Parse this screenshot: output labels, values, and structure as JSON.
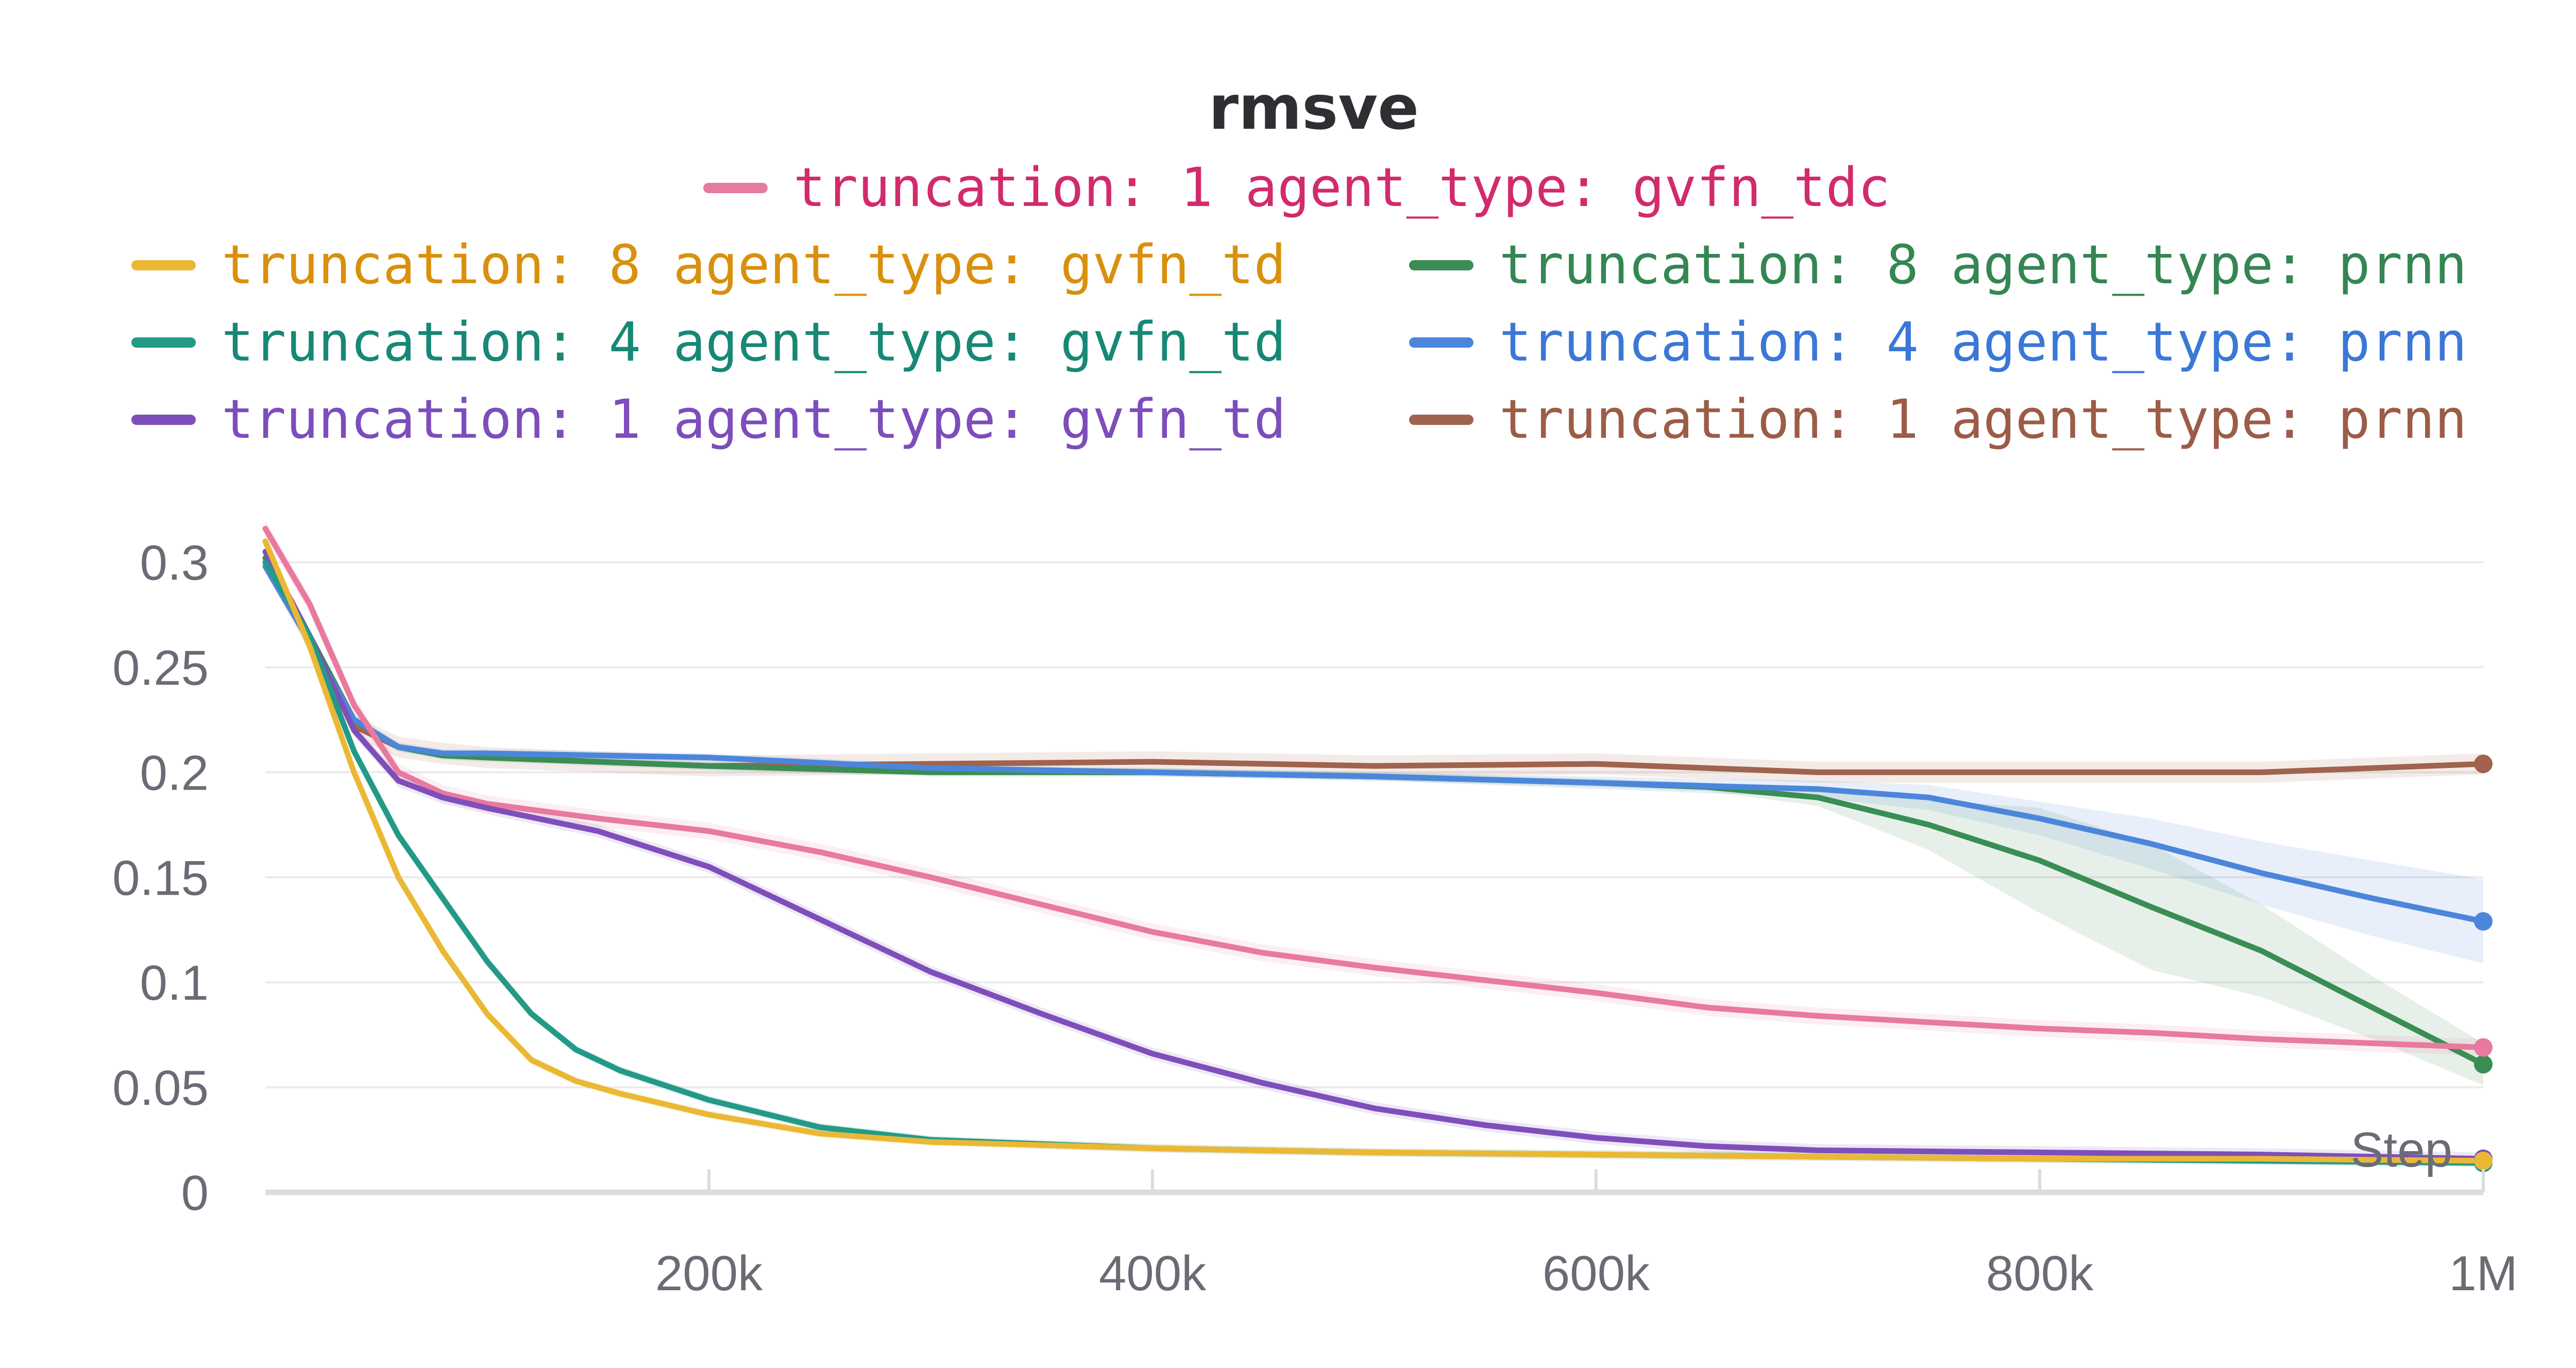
{
  "chart_data": {
    "type": "line",
    "title": "rmsve",
    "xlabel": "Step",
    "ylabel": "",
    "xlim": [
      0,
      1000000
    ],
    "ylim": [
      0,
      0.32
    ],
    "x_ticks": [
      200000,
      400000,
      600000,
      800000,
      1000000
    ],
    "x_tick_labels": [
      "200k",
      "400k",
      "600k",
      "800k",
      "1M"
    ],
    "y_ticks": [
      0,
      0.05,
      0.1,
      0.15,
      0.2,
      0.25,
      0.3
    ],
    "y_tick_labels": [
      "0",
      "0.05",
      "0.1",
      "0.15",
      "0.2",
      "0.25",
      "0.3"
    ],
    "grid": true,
    "legend_position": "top",
    "series": [
      {
        "name": "truncation: 1 agent_type: gvfn_tdc",
        "color": "#e8799f",
        "text_color": "#d12b6c",
        "band": 0.004,
        "x": [
          0,
          20000,
          40000,
          60000,
          80000,
          100000,
          150000,
          200000,
          250000,
          300000,
          350000,
          400000,
          450000,
          500000,
          550000,
          600000,
          650000,
          700000,
          750000,
          800000,
          850000,
          900000,
          950000,
          1000000
        ],
        "y": [
          0.316,
          0.28,
          0.232,
          0.2,
          0.19,
          0.185,
          0.178,
          0.172,
          0.162,
          0.15,
          0.137,
          0.124,
          0.114,
          0.107,
          0.101,
          0.095,
          0.088,
          0.084,
          0.081,
          0.078,
          0.076,
          0.073,
          0.071,
          0.069
        ]
      },
      {
        "name": "truncation: 8 agent_type: gvfn_td",
        "color": "#eab834",
        "text_color": "#d9900c",
        "band": 0.002,
        "x": [
          0,
          20000,
          40000,
          60000,
          80000,
          100000,
          120000,
          140000,
          160000,
          200000,
          250000,
          300000,
          400000,
          500000,
          600000,
          700000,
          800000,
          900000,
          1000000
        ],
        "y": [
          0.31,
          0.26,
          0.2,
          0.15,
          0.115,
          0.085,
          0.063,
          0.053,
          0.047,
          0.037,
          0.028,
          0.024,
          0.021,
          0.019,
          0.018,
          0.017,
          0.016,
          0.016,
          0.015
        ]
      },
      {
        "name": "truncation: 4 agent_type: gvfn_td",
        "color": "#239a87",
        "text_color": "#178875",
        "band": 0.002,
        "x": [
          0,
          20000,
          40000,
          60000,
          80000,
          100000,
          120000,
          140000,
          160000,
          200000,
          250000,
          300000,
          400000,
          500000,
          600000,
          700000,
          800000,
          900000,
          1000000
        ],
        "y": [
          0.3,
          0.265,
          0.21,
          0.17,
          0.14,
          0.11,
          0.085,
          0.068,
          0.058,
          0.044,
          0.031,
          0.025,
          0.021,
          0.019,
          0.018,
          0.017,
          0.016,
          0.015,
          0.014
        ]
      },
      {
        "name": "truncation: 1 agent_type: gvfn_td",
        "color": "#7e4fba",
        "text_color": "#7c4dbb",
        "band": 0.003,
        "x": [
          0,
          20000,
          40000,
          60000,
          80000,
          100000,
          150000,
          200000,
          250000,
          300000,
          350000,
          400000,
          450000,
          500000,
          550000,
          600000,
          650000,
          700000,
          800000,
          900000,
          1000000
        ],
        "y": [
          0.305,
          0.265,
          0.22,
          0.196,
          0.188,
          0.183,
          0.172,
          0.155,
          0.13,
          0.105,
          0.085,
          0.066,
          0.052,
          0.04,
          0.032,
          0.026,
          0.022,
          0.02,
          0.019,
          0.018,
          0.016
        ]
      },
      {
        "name": "truncation: 8 agent_type: prnn",
        "color": "#3a8d55",
        "text_color": "#348652",
        "band_x": [
          0,
          100000,
          200000,
          300000,
          400000,
          500000,
          600000,
          650000,
          700000,
          750000,
          800000,
          850000,
          900000,
          950000,
          1000000
        ],
        "band_w": [
          0.002,
          0.002,
          0.002,
          0.002,
          0.002,
          0.002,
          0.002,
          0.002,
          0.004,
          0.012,
          0.025,
          0.03,
          0.022,
          0.015,
          0.01
        ],
        "x": [
          0,
          20000,
          40000,
          60000,
          80000,
          100000,
          200000,
          300000,
          400000,
          500000,
          600000,
          650000,
          700000,
          750000,
          800000,
          850000,
          900000,
          950000,
          1000000
        ],
        "y": [
          0.302,
          0.265,
          0.225,
          0.212,
          0.208,
          0.207,
          0.203,
          0.2,
          0.2,
          0.198,
          0.195,
          0.193,
          0.188,
          0.175,
          0.158,
          0.136,
          0.115,
          0.088,
          0.061
        ]
      },
      {
        "name": "truncation: 4 agent_type: prnn",
        "color": "#4c86db",
        "text_color": "#3b78d6",
        "band_x": [
          0,
          100000,
          200000,
          300000,
          400000,
          500000,
          600000,
          700000,
          750000,
          800000,
          850000,
          900000,
          950000,
          1000000
        ],
        "band_w": [
          0.002,
          0.002,
          0.002,
          0.002,
          0.002,
          0.002,
          0.003,
          0.004,
          0.006,
          0.008,
          0.012,
          0.015,
          0.018,
          0.02
        ],
        "x": [
          0,
          20000,
          40000,
          60000,
          80000,
          100000,
          200000,
          300000,
          400000,
          500000,
          600000,
          700000,
          750000,
          800000,
          850000,
          900000,
          950000,
          1000000
        ],
        "y": [
          0.298,
          0.262,
          0.225,
          0.212,
          0.209,
          0.209,
          0.207,
          0.202,
          0.2,
          0.198,
          0.195,
          0.192,
          0.188,
          0.178,
          0.166,
          0.152,
          0.14,
          0.129
        ]
      },
      {
        "name": "truncation: 1 agent_type: prnn",
        "color": "#a0634d",
        "text_color": "#9c5c46",
        "band": 0.005,
        "x": [
          0,
          20000,
          40000,
          60000,
          80000,
          100000,
          200000,
          300000,
          400000,
          500000,
          600000,
          700000,
          800000,
          900000,
          1000000
        ],
        "y": [
          0.3,
          0.262,
          0.222,
          0.212,
          0.209,
          0.207,
          0.203,
          0.204,
          0.205,
          0.203,
          0.204,
          0.2,
          0.2,
          0.2,
          0.204
        ]
      }
    ]
  }
}
